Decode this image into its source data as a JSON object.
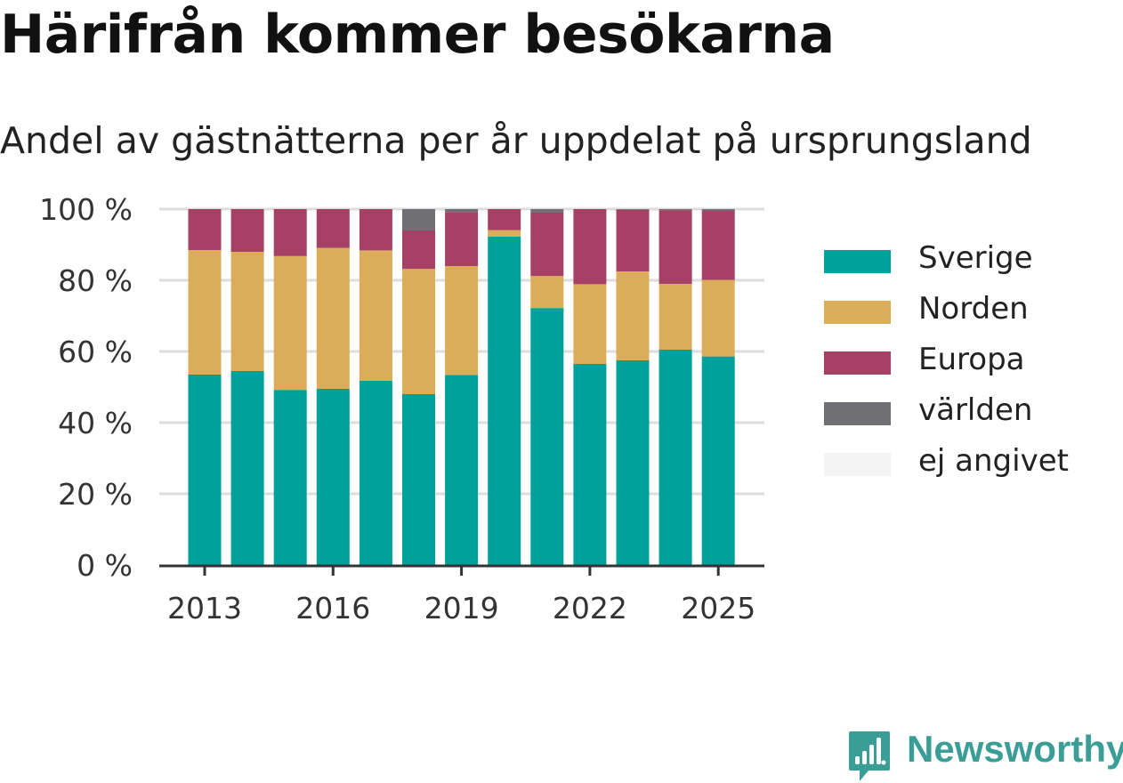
{
  "title": "Härifrån kommer besökarna",
  "subtitle": "Andel av gästnätterna per år uppdelat på ursprungsland",
  "brand": "Newsworthy",
  "chart_data": {
    "type": "bar",
    "stacked": true,
    "categories": [
      "2013",
      "2014",
      "2015",
      "2016",
      "2017",
      "2018",
      "2019",
      "2020",
      "2021",
      "2022",
      "2023",
      "2024",
      "2025"
    ],
    "x_tick_labels": [
      "2013",
      "2016",
      "2019",
      "2022",
      "2025"
    ],
    "y_ticks": [
      "0 %",
      "20 %",
      "40 %",
      "60 %",
      "80 %",
      "100 %"
    ],
    "ylim": [
      0,
      100
    ],
    "grid": true,
    "legend_position": "right",
    "series": [
      {
        "name": "Sverige",
        "color": "#00a19a",
        "values": [
          53.5,
          54.5,
          49.2,
          49.5,
          51.8,
          48.0,
          53.4,
          92.3,
          72.2,
          56.5,
          57.5,
          60.5,
          58.6
        ]
      },
      {
        "name": "Norden",
        "color": "#dbac5a",
        "values": [
          35.0,
          33.5,
          37.6,
          39.6,
          36.6,
          35.2,
          30.6,
          1.8,
          9.0,
          22.4,
          25.0,
          18.5,
          21.5
        ]
      },
      {
        "name": "Europa",
        "color": "#a64065",
        "values": [
          11.5,
          12.0,
          13.2,
          10.9,
          11.6,
          10.8,
          15.2,
          5.9,
          17.8,
          21.1,
          17.3,
          20.7,
          19.4
        ]
      },
      {
        "name": "världen",
        "color": "#707074",
        "values": [
          0.0,
          0.0,
          0.0,
          0.0,
          0.0,
          6.0,
          0.8,
          0.0,
          1.0,
          0.0,
          0.2,
          0.3,
          0.5
        ]
      },
      {
        "name": "ej angivet",
        "color": "#f3f3f3",
        "values": [
          0,
          0,
          0,
          0,
          0,
          0,
          0,
          0,
          0,
          0,
          0,
          0,
          0
        ]
      }
    ]
  }
}
